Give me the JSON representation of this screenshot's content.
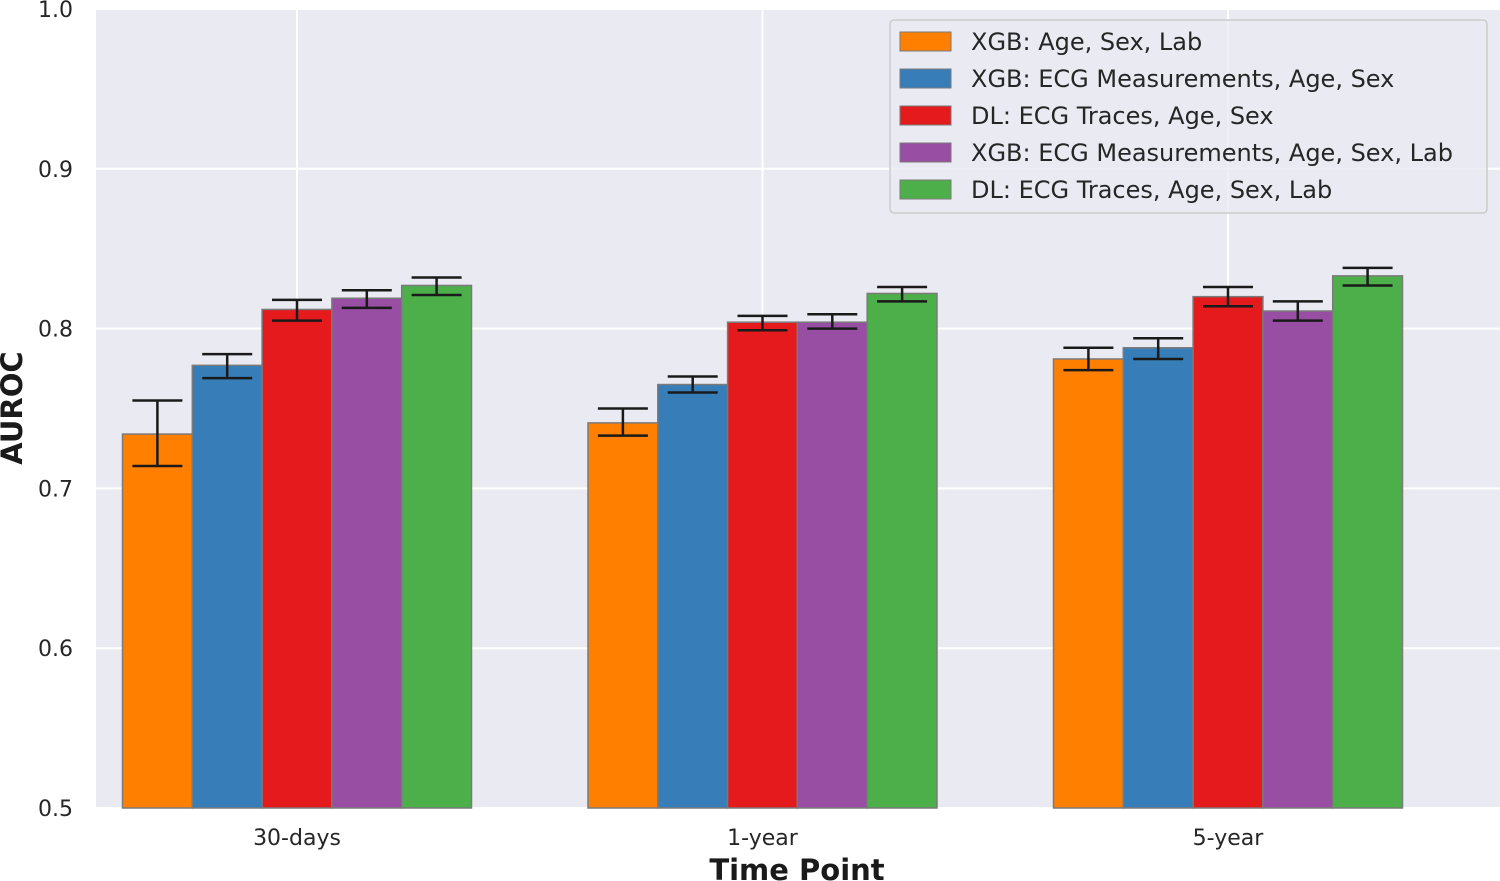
{
  "chart_data": {
    "type": "bar",
    "title": "",
    "xlabel": "Time Point",
    "ylabel": "AUROC",
    "ylim": [
      0.5,
      1.0
    ],
    "yticks": [
      0.5,
      0.6,
      0.7,
      0.8,
      0.9,
      1.0
    ],
    "ytick_labels": [
      "0.5",
      "0.6",
      "0.7",
      "0.8",
      "0.9",
      "1.0"
    ],
    "categories": [
      "30-days",
      "1-year",
      "5-year"
    ],
    "grid": true,
    "legend_position": "top-right",
    "series": [
      {
        "name": "XGB: Age, Sex, Lab",
        "color": "#ff7f00",
        "values": [
          0.734,
          0.741,
          0.781
        ],
        "err_low": [
          0.714,
          0.733,
          0.774
        ],
        "err_high": [
          0.755,
          0.75,
          0.788
        ]
      },
      {
        "name": "XGB: ECG Measurements, Age, Sex",
        "color": "#377eb8",
        "values": [
          0.777,
          0.765,
          0.788
        ],
        "err_low": [
          0.769,
          0.76,
          0.781
        ],
        "err_high": [
          0.784,
          0.77,
          0.794
        ]
      },
      {
        "name": "DL: ECG Traces, Age, Sex",
        "color": "#e41a1c",
        "values": [
          0.812,
          0.804,
          0.82
        ],
        "err_low": [
          0.805,
          0.799,
          0.814
        ],
        "err_high": [
          0.818,
          0.808,
          0.826
        ]
      },
      {
        "name": "XGB: ECG Measurements, Age, Sex, Lab",
        "color": "#984ea3",
        "values": [
          0.819,
          0.804,
          0.811
        ],
        "err_low": [
          0.813,
          0.8,
          0.805
        ],
        "err_high": [
          0.824,
          0.809,
          0.817
        ]
      },
      {
        "name": "DL: ECG Traces, Age, Sex, Lab",
        "color": "#4daf4a",
        "values": [
          0.827,
          0.822,
          0.833
        ],
        "err_low": [
          0.821,
          0.817,
          0.827
        ],
        "err_high": [
          0.832,
          0.826,
          0.838
        ]
      }
    ]
  }
}
